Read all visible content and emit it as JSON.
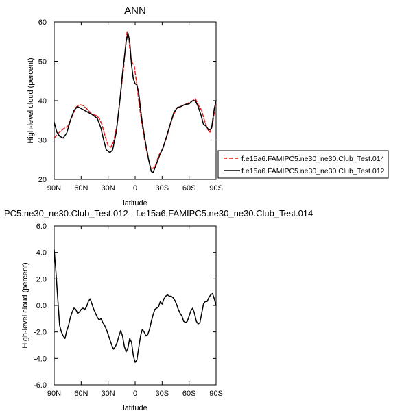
{
  "chart_data": [
    {
      "type": "line",
      "title": "ANN",
      "xlabel": "latitude",
      "ylabel": "High-level cloud (percent)",
      "xlim": [
        90,
        -90
      ],
      "ylim": [
        20,
        60
      ],
      "x_ticks": [
        90,
        60,
        30,
        0,
        -30,
        -60,
        -90
      ],
      "x_tick_labels": [
        "90N",
        "60N",
        "30N",
        "0",
        "30S",
        "60S",
        "90S"
      ],
      "y_ticks": [
        20,
        30,
        40,
        50,
        60
      ],
      "y_tick_labels": [
        "20",
        "30",
        "40",
        "50",
        "60"
      ],
      "grid": false,
      "legend_position": "right",
      "series": [
        {
          "name": "f.e15a6.FAMIPC5.ne30_ne30.Club_Test.014",
          "color": "#e41a1c",
          "dash": "dashed",
          "points": [
            [
              90,
              30.5
            ],
            [
              85,
              31.8
            ],
            [
              80,
              32.8
            ],
            [
              75,
              33.5
            ],
            [
              70,
              36
            ],
            [
              66,
              38.3
            ],
            [
              62,
              39
            ],
            [
              58,
              38.8
            ],
            [
              54,
              38
            ],
            [
              50,
              37
            ],
            [
              47,
              36.5
            ],
            [
              43,
              36.2
            ],
            [
              40,
              35.5
            ],
            [
              37,
              34
            ],
            [
              34,
              31.5
            ],
            [
              30,
              28.5
            ],
            [
              27,
              28.2
            ],
            [
              24,
              29.5
            ],
            [
              20,
              34
            ],
            [
              16,
              42
            ],
            [
              13,
              48
            ],
            [
              11,
              53
            ],
            [
              9,
              57.5
            ],
            [
              7,
              56
            ],
            [
              5,
              51
            ],
            [
              3,
              49.5
            ],
            [
              1,
              48.8
            ],
            [
              -2,
              44
            ],
            [
              -5,
              38
            ],
            [
              -9,
              32
            ],
            [
              -13,
              27
            ],
            [
              -17,
              23
            ],
            [
              -20,
              22.8
            ],
            [
              -23,
              23.8
            ],
            [
              -26,
              26
            ],
            [
              -30,
              27.5
            ],
            [
              -34,
              30
            ],
            [
              -38,
              33
            ],
            [
              -42,
              36
            ],
            [
              -46,
              38
            ],
            [
              -50,
              38.5
            ],
            [
              -55,
              39
            ],
            [
              -60,
              39.5
            ],
            [
              -64,
              40
            ],
            [
              -67,
              40.5
            ],
            [
              -70,
              39
            ],
            [
              -74,
              37.5
            ],
            [
              -77,
              35
            ],
            [
              -80,
              33
            ],
            [
              -83,
              31.8
            ],
            [
              -86,
              34
            ],
            [
              -90,
              40
            ]
          ]
        },
        {
          "name": "f.e15a6.FAMIPC5.ne30_ne30.Club_Test.012",
          "color": "#000000",
          "dash": "solid",
          "points": [
            [
              90,
              34.5
            ],
            [
              87,
              32
            ],
            [
              84,
              31
            ],
            [
              80,
              30.5
            ],
            [
              76,
              31.8
            ],
            [
              72,
              35
            ],
            [
              68,
              37.5
            ],
            [
              64,
              38.5
            ],
            [
              60,
              38
            ],
            [
              56,
              37.5
            ],
            [
              52,
              37
            ],
            [
              48,
              36.5
            ],
            [
              45,
              36
            ],
            [
              42,
              35.5
            ],
            [
              38,
              33
            ],
            [
              35,
              30
            ],
            [
              32,
              27.5
            ],
            [
              28,
              26.8
            ],
            [
              25,
              27.5
            ],
            [
              21,
              32
            ],
            [
              17,
              40
            ],
            [
              14,
              47
            ],
            [
              12,
              51
            ],
            [
              10,
              55
            ],
            [
              8,
              57.2
            ],
            [
              6,
              55
            ],
            [
              4,
              49
            ],
            [
              2,
              45.5
            ],
            [
              0,
              44.3
            ],
            [
              -2,
              44
            ],
            [
              -4,
              42
            ],
            [
              -7,
              36
            ],
            [
              -11,
              30
            ],
            [
              -15,
              25
            ],
            [
              -18,
              22
            ],
            [
              -20,
              21.8
            ],
            [
              -23,
              23.5
            ],
            [
              -27,
              26
            ],
            [
              -31,
              28
            ],
            [
              -35,
              31
            ],
            [
              -39,
              34
            ],
            [
              -43,
              37
            ],
            [
              -47,
              38.3
            ],
            [
              -51,
              38.5
            ],
            [
              -55,
              39
            ],
            [
              -60,
              39.2
            ],
            [
              -64,
              40
            ],
            [
              -67,
              40
            ],
            [
              -70,
              38.5
            ],
            [
              -73,
              36.5
            ],
            [
              -76,
              34
            ],
            [
              -79,
              33.5
            ],
            [
              -82,
              32.5
            ],
            [
              -85,
              33
            ],
            [
              -88,
              38
            ],
            [
              -90,
              40
            ]
          ]
        }
      ]
    },
    {
      "type": "line",
      "title": "PC5.ne30_ne30.Club_Test.012 - f.e15a6.FAMIPC5.ne30_ne30.Club_Test.014",
      "xlabel": "latitude",
      "ylabel": "High-level cloud (percent)",
      "xlim": [
        90,
        -90
      ],
      "ylim": [
        -6,
        6
      ],
      "x_ticks": [
        90,
        60,
        30,
        0,
        -30,
        -60,
        -90
      ],
      "x_tick_labels": [
        "90N",
        "60N",
        "30N",
        "0",
        "30S",
        "60S",
        "90S"
      ],
      "y_ticks": [
        -6,
        -4,
        -2,
        0,
        2,
        4,
        6
      ],
      "y_tick_labels": [
        "-6.0",
        "-4.0",
        "-2.0",
        "0.0",
        "2.0",
        "4.0",
        "6.0"
      ],
      "grid": false,
      "series": [
        {
          "color": "#000000",
          "dash": "solid",
          "points": [
            [
              90,
              4.2
            ],
            [
              88,
              2.5
            ],
            [
              86,
              0.5
            ],
            [
              84,
              -1.5
            ],
            [
              82,
              -2
            ],
            [
              80,
              -2.3
            ],
            [
              78,
              -2.5
            ],
            [
              76,
              -1.9
            ],
            [
              74,
              -1.5
            ],
            [
              72,
              -0.9
            ],
            [
              70,
              -0.5
            ],
            [
              68,
              -0.2
            ],
            [
              66,
              -0.3
            ],
            [
              64,
              -0.6
            ],
            [
              62,
              -0.5
            ],
            [
              60,
              -0.3
            ],
            [
              58,
              -0.2
            ],
            [
              56,
              -0.3
            ],
            [
              54,
              -0.1
            ],
            [
              52,
              0.3
            ],
            [
              50,
              0.5
            ],
            [
              48,
              0.1
            ],
            [
              46,
              -0.3
            ],
            [
              44,
              -0.6
            ],
            [
              42,
              -0.9
            ],
            [
              40,
              -1.1
            ],
            [
              38,
              -1.0
            ],
            [
              36,
              -1.3
            ],
            [
              34,
              -1.5
            ],
            [
              32,
              -1.8
            ],
            [
              30,
              -2.2
            ],
            [
              28,
              -2.6
            ],
            [
              26,
              -3.0
            ],
            [
              24,
              -3.3
            ],
            [
              22,
              -3.1
            ],
            [
              20,
              -2.8
            ],
            [
              18,
              -2.3
            ],
            [
              16,
              -1.9
            ],
            [
              14,
              -2.3
            ],
            [
              12,
              -3.1
            ],
            [
              10,
              -3.5
            ],
            [
              8,
              -3.2
            ],
            [
              6,
              -2.5
            ],
            [
              4,
              -2.8
            ],
            [
              2,
              -3.8
            ],
            [
              0,
              -4.3
            ],
            [
              -2,
              -4.1
            ],
            [
              -4,
              -3.2
            ],
            [
              -6,
              -2.3
            ],
            [
              -8,
              -1.8
            ],
            [
              -10,
              -2.0
            ],
            [
              -12,
              -2.3
            ],
            [
              -14,
              -2.2
            ],
            [
              -16,
              -1.8
            ],
            [
              -18,
              -1.2
            ],
            [
              -20,
              -0.7
            ],
            [
              -22,
              -0.3
            ],
            [
              -24,
              -0.2
            ],
            [
              -26,
              -0.1
            ],
            [
              -28,
              0.3
            ],
            [
              -30,
              0.1
            ],
            [
              -32,
              0.5
            ],
            [
              -34,
              0.7
            ],
            [
              -36,
              0.8
            ],
            [
              -38,
              0.7
            ],
            [
              -40,
              0.7
            ],
            [
              -42,
              0.6
            ],
            [
              -44,
              0.4
            ],
            [
              -46,
              0.1
            ],
            [
              -48,
              -0.3
            ],
            [
              -50,
              -0.6
            ],
            [
              -52,
              -0.8
            ],
            [
              -54,
              -1.2
            ],
            [
              -56,
              -1.3
            ],
            [
              -58,
              -1.2
            ],
            [
              -60,
              -0.8
            ],
            [
              -62,
              -0.4
            ],
            [
              -64,
              -0.2
            ],
            [
              -66,
              -0.6
            ],
            [
              -68,
              -1.2
            ],
            [
              -70,
              -1.4
            ],
            [
              -72,
              -1.3
            ],
            [
              -74,
              -0.6
            ],
            [
              -76,
              0.1
            ],
            [
              -78,
              0.3
            ],
            [
              -80,
              0.3
            ],
            [
              -82,
              0.6
            ],
            [
              -84,
              0.8
            ],
            [
              -86,
              0.9
            ],
            [
              -88,
              0.5
            ],
            [
              -90,
              0
            ]
          ]
        }
      ]
    }
  ]
}
